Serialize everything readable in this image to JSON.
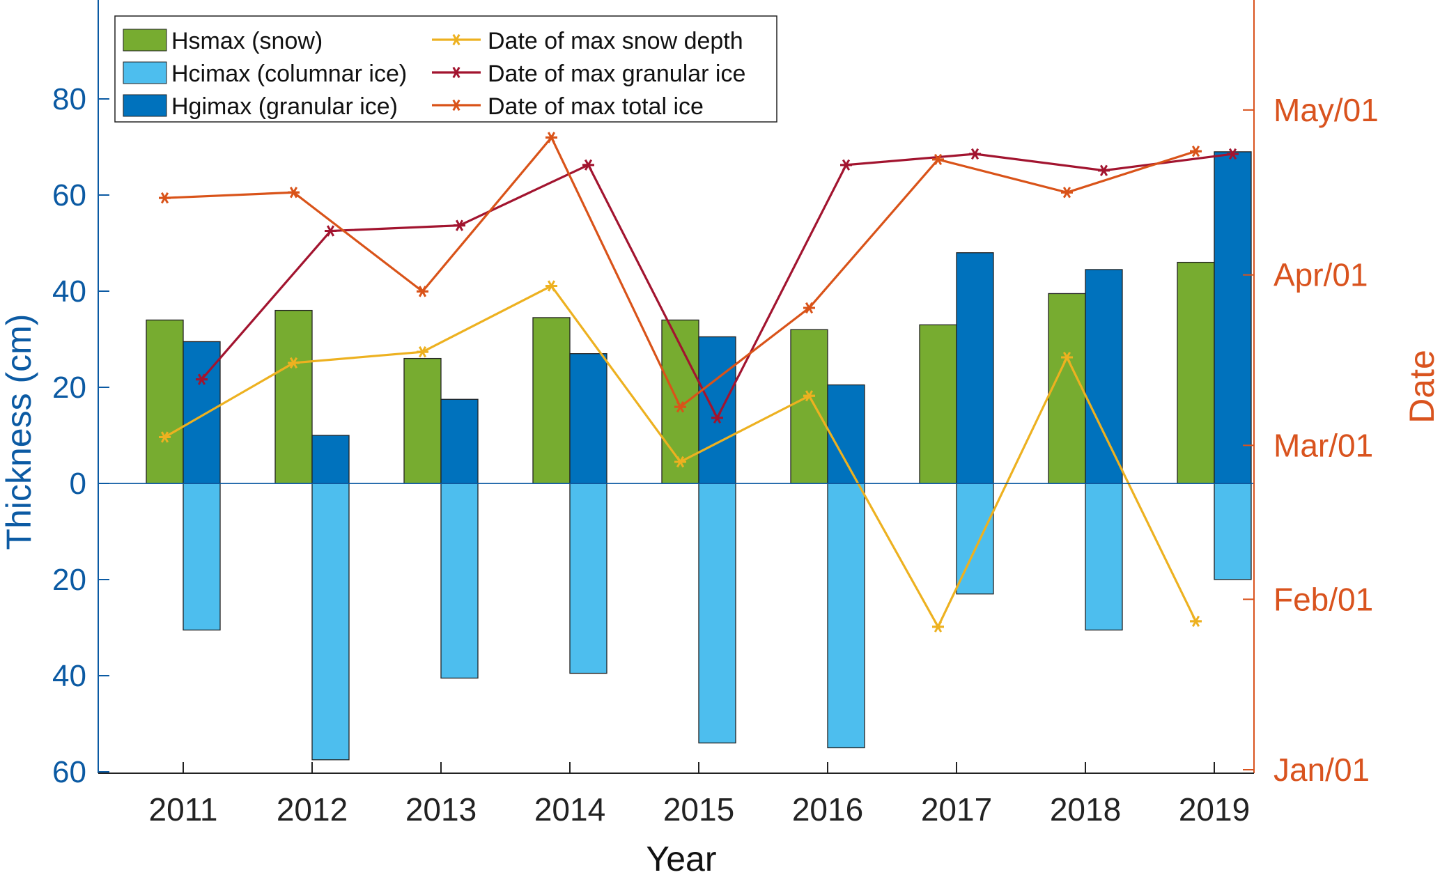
{
  "chart_data": {
    "type": "bar",
    "categories": [
      "2011",
      "2012",
      "2013",
      "2014",
      "2015",
      "2016",
      "2017",
      "2018",
      "2019"
    ],
    "xlabel": "Year",
    "ylabel_left": "Thickness (cm)",
    "ylabel_right": "Date",
    "ylim_left": [
      -60,
      95
    ],
    "yticks_left": [
      {
        "value": 80,
        "label": "80"
      },
      {
        "value": 60,
        "label": "60"
      },
      {
        "value": 40,
        "label": "40"
      },
      {
        "value": 20,
        "label": "20"
      },
      {
        "value": 0,
        "label": "0"
      },
      {
        "value": -20,
        "label": "20"
      },
      {
        "value": -40,
        "label": "40"
      },
      {
        "value": -60,
        "label": "60"
      }
    ],
    "yticks_right": [
      {
        "value": 0,
        "label": "Jan/01"
      },
      {
        "value": 31,
        "label": "Feb/01"
      },
      {
        "value": 59,
        "label": "Mar/01"
      },
      {
        "value": 90,
        "label": "Apr/01"
      },
      {
        "value": 120,
        "label": "May/01"
      }
    ],
    "bar_series": [
      {
        "name": "Hsmax (snow)",
        "color": "#77ac30",
        "offset": -1,
        "values": [
          34,
          36,
          26,
          34.5,
          34,
          32,
          33,
          39.5,
          46
        ]
      },
      {
        "name": "Hcimax (columnar ice)",
        "color": "#4dbeee",
        "offset": 1,
        "values": [
          -30.5,
          -57.5,
          -40.5,
          -39.5,
          -54,
          -55,
          -23,
          -30.5,
          -20
        ]
      },
      {
        "name": "Hgimax (granular ice)",
        "color": "#0072bd",
        "offset": 1,
        "values": [
          29.5,
          10,
          17.5,
          27,
          30.5,
          20.5,
          48,
          44.5,
          69
        ]
      }
    ],
    "line_series": [
      {
        "name": "Date of max snow depth",
        "color": "#edb120",
        "offset": -1,
        "values": [
          60.5,
          74,
          76,
          88,
          56,
          68,
          26,
          75,
          27
        ]
      },
      {
        "name": "Date of max granular ice",
        "color": "#a2142f",
        "offset": 1,
        "values": [
          71,
          98,
          99,
          110,
          64,
          110,
          112,
          109,
          112
        ]
      },
      {
        "name": "Date of max total ice",
        "color": "#d95319",
        "offset": -1,
        "values": [
          104,
          105,
          87,
          115,
          66,
          84,
          111,
          105,
          112.5
        ]
      }
    ],
    "legend": {
      "position": "top-left"
    }
  }
}
